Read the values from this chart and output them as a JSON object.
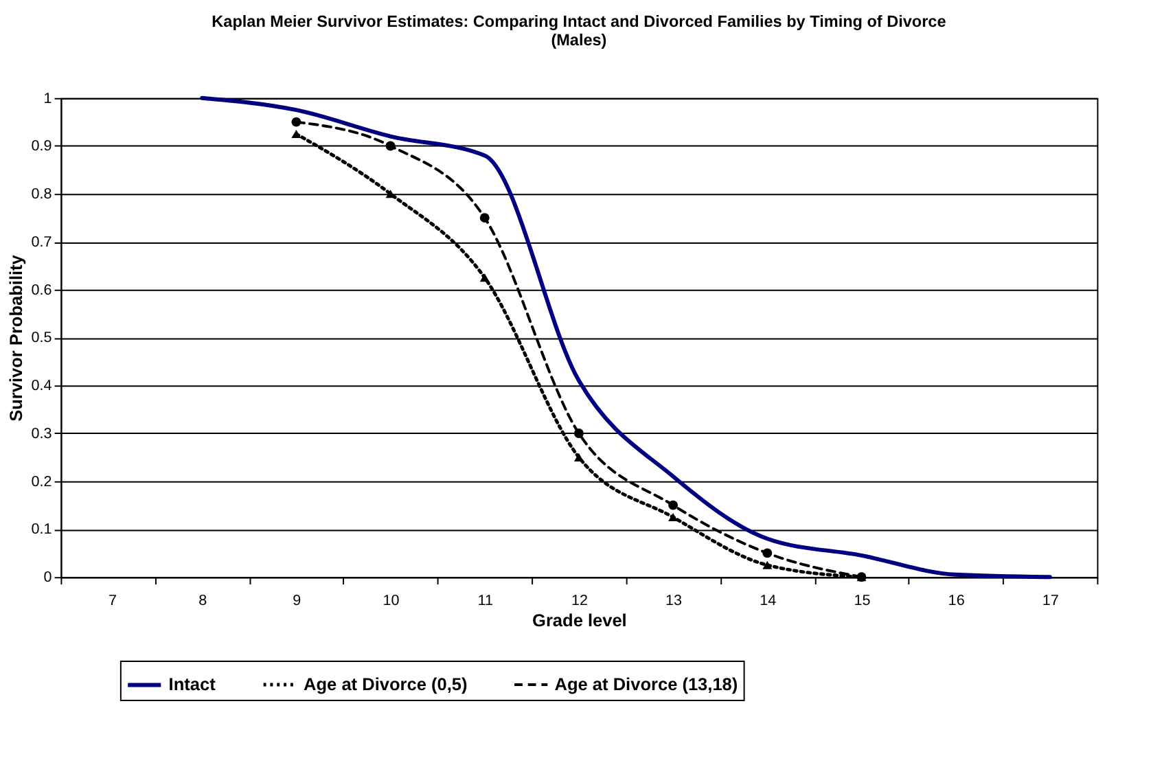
{
  "chart_data": {
    "type": "line",
    "title": "Kaplan Meier Survivor Estimates: Comparing Intact and Divorced Families by Timing of Divorce (Males)",
    "xlabel": "Grade level",
    "ylabel": "Survivor Probability",
    "categories": [
      "7",
      "8",
      "9",
      "10",
      "11",
      "12",
      "13",
      "14",
      "15",
      "16",
      "17"
    ],
    "series": [
      {
        "name": "Intact",
        "color": "#000080",
        "line_style": "solid",
        "marker": "none",
        "x": [
          "8",
          "9",
          "10",
          "11",
          "12",
          "13",
          "14",
          "15",
          "16",
          "17"
        ],
        "values": [
          1.0,
          0.975,
          0.92,
          0.88,
          0.41,
          0.21,
          0.08,
          0.045,
          0.005,
          0.0
        ]
      },
      {
        "name": "Age at Divorce (0,5)",
        "color": "#000000",
        "line_style": "dotted",
        "marker": "triangle",
        "x": [
          "9",
          "10",
          "11",
          "12",
          "13",
          "14",
          "15"
        ],
        "values": [
          0.925,
          0.8,
          0.625,
          0.25,
          0.125,
          0.025,
          0.0
        ]
      },
      {
        "name": "Age at Divorce (13,18)",
        "color": "#000000",
        "line_style": "dashed",
        "marker": "circle",
        "x": [
          "9",
          "10",
          "11",
          "12",
          "13",
          "14",
          "15"
        ],
        "values": [
          0.95,
          0.9,
          0.75,
          0.3,
          0.15,
          0.05,
          0.0
        ]
      }
    ],
    "ylim": [
      0,
      1
    ],
    "yticks": [
      0,
      0.1,
      0.2,
      0.3,
      0.4,
      0.5,
      0.6,
      0.7,
      0.8,
      0.9,
      1
    ],
    "grid": "y",
    "legend": "bottom"
  }
}
